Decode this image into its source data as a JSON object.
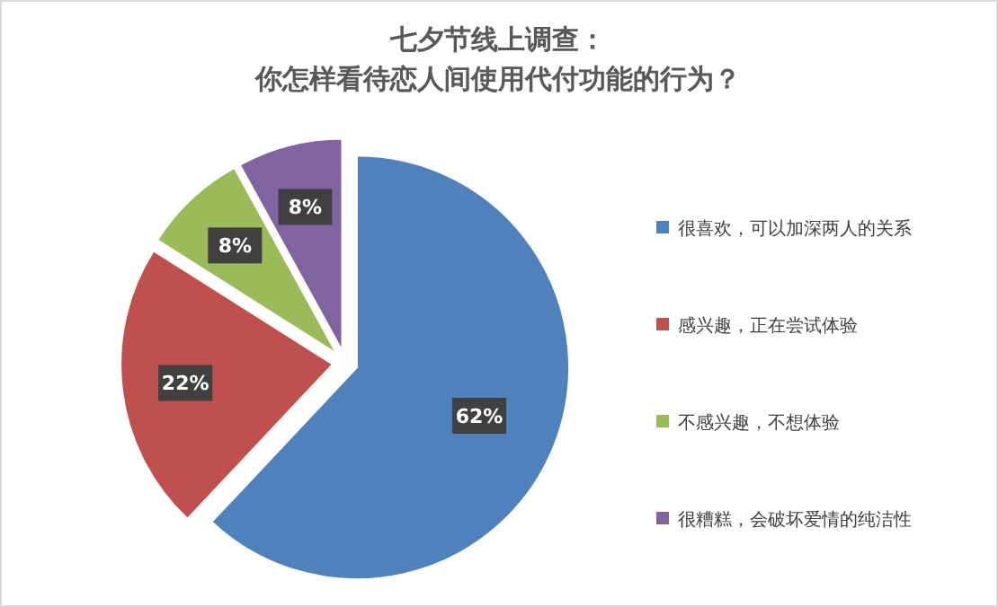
{
  "chart_data": {
    "type": "pie",
    "title": "七夕节线上调查：",
    "subtitle": "你怎样看待恋人间使用代付功能的行为？",
    "categories": [
      "很喜欢，可以加深两人的关系",
      "感兴趣，正在尝试体验",
      "不感兴趣，不想体验",
      "很糟糕，会破坏爱情的纯洁性"
    ],
    "values": [
      62,
      22,
      8,
      8
    ],
    "colors": [
      "#4f81bd",
      "#c0504d",
      "#9bbb59",
      "#8064a2"
    ],
    "value_labels": [
      "62%",
      "22%",
      "8%",
      "8%"
    ],
    "legend": "right"
  }
}
